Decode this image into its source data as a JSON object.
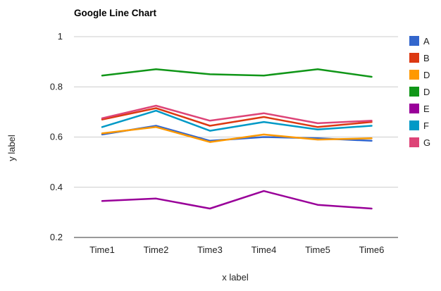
{
  "chart_data": {
    "type": "line",
    "title": "Google Line Chart",
    "xlabel": "x label",
    "ylabel": "y label",
    "categories": [
      "Time1",
      "Time2",
      "Time3",
      "Time4",
      "Time5",
      "Time6"
    ],
    "ylim": [
      0.2,
      1.0
    ],
    "yticks": [
      "0.2",
      "0.4",
      "0.6",
      "0.8",
      "1"
    ],
    "ytick_values": [
      0.2,
      0.4,
      0.6,
      0.8,
      1.0
    ],
    "grid": true,
    "legend_position": "right",
    "series": [
      {
        "name": "A",
        "color": "#3366cc",
        "values": [
          0.61,
          0.645,
          0.585,
          0.6,
          0.595,
          0.585
        ]
      },
      {
        "name": "B",
        "color": "#dc3912",
        "values": [
          0.67,
          0.715,
          0.645,
          0.68,
          0.64,
          0.66
        ]
      },
      {
        "name": "D",
        "color": "#ff9900",
        "values": [
          0.615,
          0.64,
          0.58,
          0.61,
          0.59,
          0.595
        ]
      },
      {
        "name": "D",
        "color": "#109618",
        "values": [
          0.845,
          0.87,
          0.85,
          0.845,
          0.87,
          0.84
        ]
      },
      {
        "name": "E",
        "color": "#990099",
        "values": [
          0.345,
          0.355,
          0.315,
          0.385,
          0.33,
          0.315
        ]
      },
      {
        "name": "F",
        "color": "#0099c6",
        "values": [
          0.64,
          0.705,
          0.625,
          0.66,
          0.63,
          0.645
        ]
      },
      {
        "name": "G",
        "color": "#dd4477",
        "values": [
          0.675,
          0.725,
          0.665,
          0.695,
          0.655,
          0.665
        ]
      }
    ]
  }
}
